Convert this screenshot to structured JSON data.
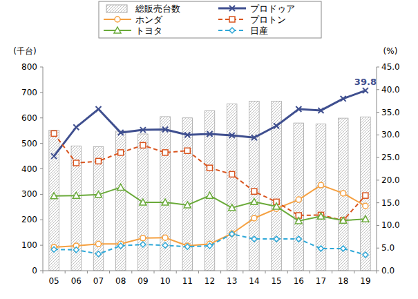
{
  "chart_data": {
    "type": "bar",
    "y_label": "(千台)",
    "y2_label": "(%)",
    "categories": [
      "05",
      "06",
      "07",
      "08",
      "09",
      "10",
      "11",
      "12",
      "13",
      "14",
      "15",
      "16",
      "17",
      "18",
      "19"
    ],
    "series": [
      {
        "name": "総販売台数",
        "type": "bar",
        "color": "#bfbfbf",
        "values": [
          552,
          490,
          487,
          548,
          537,
          605,
          600,
          628,
          655,
          666,
          666,
          580,
          576,
          599,
          604
        ]
      },
      {
        "name": "プロドゥア",
        "type": "line",
        "axis": "y2",
        "color": "#3f4f8f",
        "marker": "x",
        "line_style": "solid",
        "values": [
          25.3,
          31.7,
          35.7,
          30.5,
          31.1,
          31.2,
          30.0,
          30.2,
          29.9,
          29.4,
          32.0,
          35.7,
          35.4,
          38.0,
          39.8
        ],
        "value_labels": [
          null,
          null,
          null,
          null,
          null,
          null,
          null,
          null,
          null,
          null,
          null,
          null,
          null,
          null,
          "39.8"
        ]
      },
      {
        "name": "ホンダ",
        "type": "line",
        "axis": "y2",
        "color": "#f5a040",
        "marker": "circle",
        "line_style": "solid",
        "values": [
          5.2,
          5.5,
          5.9,
          5.9,
          7.2,
          7.3,
          5.5,
          5.9,
          8.2,
          11.6,
          13.7,
          15.7,
          18.9,
          17.1,
          14.3
        ]
      },
      {
        "name": "プロトン",
        "type": "line",
        "axis": "y2",
        "color": "#d9541e",
        "marker": "square",
        "line_style": "dashed",
        "values": [
          30.3,
          23.8,
          24.2,
          26.1,
          27.7,
          26.1,
          26.5,
          22.7,
          21.3,
          17.5,
          15.2,
          12.2,
          12.3,
          11.1,
          16.6
        ]
      },
      {
        "name": "トヨタ",
        "type": "line",
        "axis": "y2",
        "color": "#6aaa3a",
        "marker": "triangle",
        "line_style": "solid",
        "values": [
          16.5,
          16.6,
          16.8,
          18.4,
          15.1,
          15.1,
          14.5,
          16.6,
          13.9,
          15.2,
          14.2,
          11.0,
          12.0,
          11.1,
          11.4
        ]
      },
      {
        "name": "日産",
        "type": "line",
        "axis": "y2",
        "color": "#2fa8d8",
        "marker": "diamond",
        "line_style": "dashed",
        "values": [
          4.7,
          4.6,
          3.7,
          5.5,
          5.8,
          5.6,
          5.3,
          5.5,
          8.1,
          7.0,
          7.0,
          7.0,
          4.9,
          4.9,
          3.5
        ]
      }
    ],
    "ylim": [
      0,
      800
    ],
    "yticks": [
      0,
      100,
      200,
      300,
      400,
      500,
      600,
      700,
      800
    ],
    "y2lim": [
      0,
      45
    ],
    "y2ticks": [
      {
        "value": 0,
        "label": "0.0"
      },
      {
        "value": 5,
        "label": "5.0"
      },
      {
        "value": 10,
        "label": "10.0"
      },
      {
        "value": 15,
        "label": "15.0"
      },
      {
        "value": 20,
        "label": "20.0"
      },
      {
        "value": 25,
        "label": "25.0"
      },
      {
        "value": 30,
        "label": "30.0"
      },
      {
        "value": 35,
        "label": "35.0"
      },
      {
        "value": 40,
        "label": "40.0"
      },
      {
        "value": 45,
        "label": "45.0"
      }
    ],
    "grid": false,
    "legend": "top"
  }
}
